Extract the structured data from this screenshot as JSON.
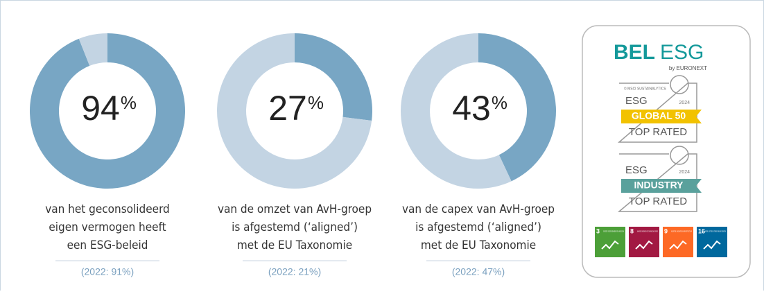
{
  "chart_data": [
    {
      "type": "donut",
      "values": [
        94,
        6
      ],
      "colors": [
        "#78a6c4",
        "#c3d4e3"
      ],
      "unit": "%",
      "caption": [
        "van het geconsolideerd",
        "eigen vermogen heeft",
        "een ESG-beleid"
      ],
      "note": "(2022: 91%)"
    },
    {
      "type": "donut",
      "values": [
        27,
        73
      ],
      "colors": [
        "#78a6c4",
        "#c3d4e3"
      ],
      "unit": "%",
      "caption": [
        "van de omzet van AvH-groep",
        "is afgestemd (‘aligned’)",
        "met de EU Taxonomie"
      ],
      "note": "(2022: 21%)"
    },
    {
      "type": "donut",
      "values": [
        43,
        57
      ],
      "colors": [
        "#78a6c4",
        "#c3d4e3"
      ],
      "unit": "%",
      "caption": [
        "van de capex van AvH-groep",
        "is afgestemd (‘aligned’)",
        "met de EU Taxonomie"
      ],
      "note": "(2022: 47%)"
    }
  ],
  "panel": {
    "logo": {
      "brand": "BEL",
      "suffix": "ESG",
      "byline": "by EURONEXT"
    },
    "badges": [
      {
        "source": "© MSCI SUSTAINALYTICS",
        "title": "ESG",
        "year": "2024",
        "banner": "GLOBAL 50",
        "rating": "TOP RATED"
      },
      {
        "title": "ESG",
        "year": "2024",
        "banner": "INDUSTRY",
        "rating": "TOP RATED"
      }
    ],
    "sdgs": [
      {
        "number": "3",
        "label": "GOEDE GEZONDHEID EN WELZIJN"
      },
      {
        "number": "8",
        "label": "WAARDIG WERK EN ECONOMISCHE GROEI"
      },
      {
        "number": "9",
        "label": "INDUSTRIE, INNOVATIE EN INFRASTRUCTUUR"
      },
      {
        "number": "16",
        "label": "VREDE, JUSTITIE EN STERKE PUBLIEKE DIENSTEN"
      }
    ]
  }
}
